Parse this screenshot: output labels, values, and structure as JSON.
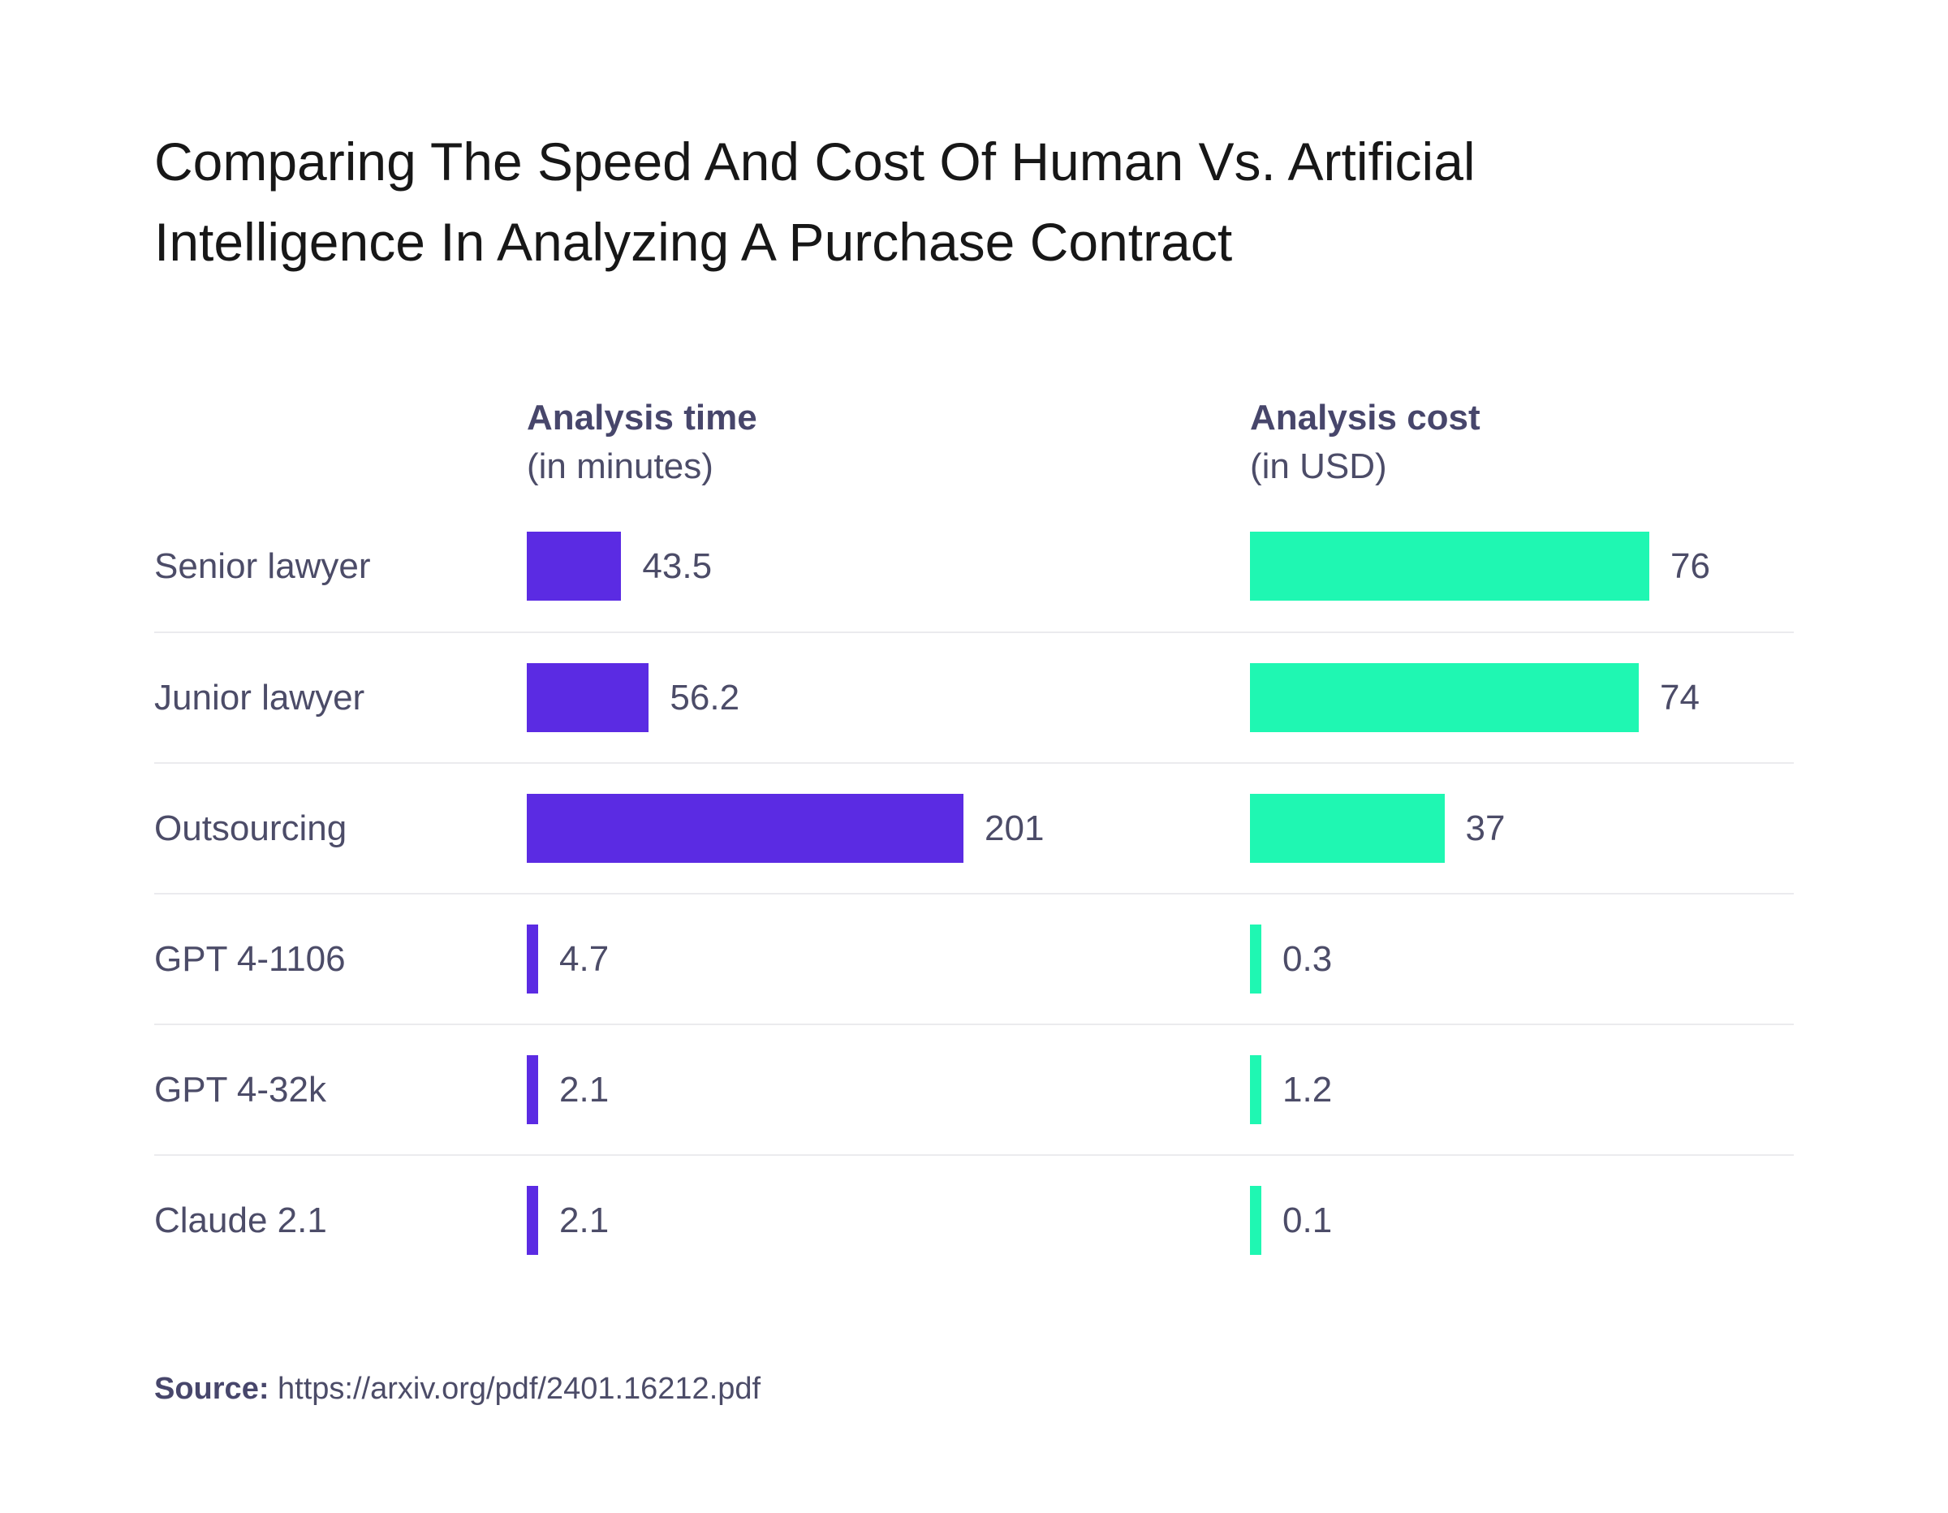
{
  "title": "Comparing The Speed And Cost Of Human Vs. Artificial Intelligence In Analyzing A Purchase Contract",
  "columns": {
    "time": {
      "label": "Analysis time",
      "sublabel": "(in minutes)"
    },
    "cost": {
      "label": "Analysis cost",
      "sublabel": "(in USD)"
    }
  },
  "source": {
    "label": "Source:",
    "url": "https://arxiv.org/pdf/2401.16212.pdf"
  },
  "colors": {
    "time_bar": "#5b2be3",
    "cost_bar": "#1ff7b2",
    "text": "#4c4c68",
    "title": "#171717",
    "separator": "#ebebee"
  },
  "chart_data": {
    "type": "bar",
    "orientation": "horizontal",
    "title": "Comparing The Speed And Cost Of Human Vs. Artificial Intelligence In Analyzing A Purchase Contract",
    "categories": [
      "Senior lawyer",
      "Junior lawyer",
      "Outsourcing",
      "GPT 4-1106",
      "GPT 4-32k",
      "Claude 2.1"
    ],
    "series": [
      {
        "name": "Analysis time (in minutes)",
        "color": "#5b2be3",
        "values": [
          43.5,
          56.2,
          201,
          4.7,
          2.1,
          2.1
        ],
        "axis_max": 201
      },
      {
        "name": "Analysis cost (in USD)",
        "color": "#1ff7b2",
        "values": [
          76,
          74,
          37,
          0.3,
          1.2,
          0.1
        ],
        "axis_max": 76
      }
    ],
    "value_labels": "at bar end",
    "grid": false,
    "legend": "column headers above each bar group",
    "source_note": "Source: https://arxiv.org/pdf/2401.16212.pdf"
  }
}
